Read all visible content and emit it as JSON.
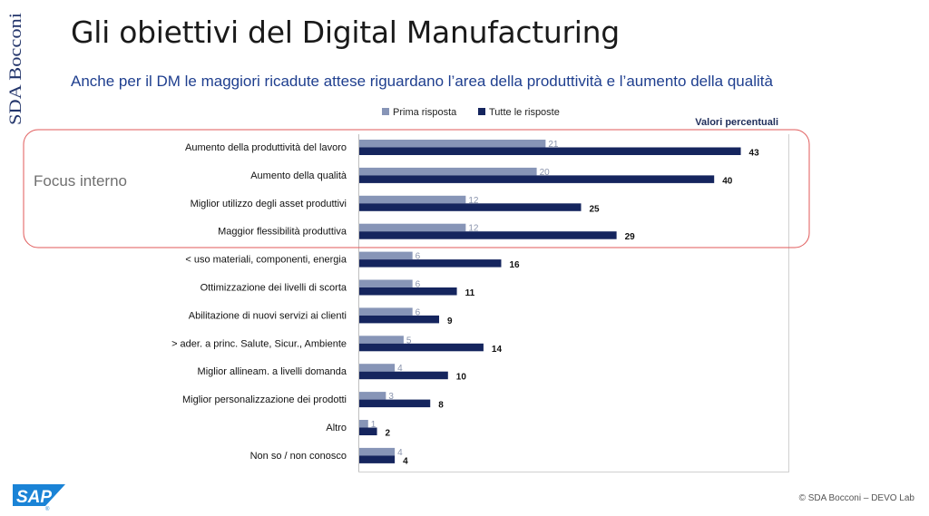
{
  "brand": {
    "side_label": "SDA Bocconi",
    "logo_text": "SAP",
    "logo_mark": "®"
  },
  "title": "Gli obiettivi del Digital Manufacturing",
  "subtitle": "Anche per il DM le maggiori ricadute attese riguardano l’area della produttività e l’aumento della qualità",
  "footer": {
    "copyright": "© SDA Bocconi – DEVO Lab"
  },
  "colors": {
    "primary": "#8795b7",
    "all": "#15255e",
    "focus_box": "#e05a5a"
  },
  "chart_data": {
    "type": "bar",
    "orientation": "horizontal",
    "units_label": "Valori percentuali",
    "categories": [
      "Aumento della produttività del lavoro",
      "Aumento della qualità",
      "Miglior utilizzo degli asset produttivi",
      "Maggior flessibilità produttiva",
      "< uso materiali, componenti, energia",
      "Ottimizzazione dei livelli di scorta",
      "Abilitazione di nuovi servizi ai clienti",
      "> ader. a princ.  Salute, Sicur., Ambiente",
      "Miglior allineam. a livelli domanda",
      "Miglior personalizzazione dei prodotti",
      "Altro",
      "Non so / non conosco"
    ],
    "series": [
      {
        "name": "Prima risposta",
        "values": [
          21,
          20,
          12,
          12,
          6,
          6,
          6,
          5,
          4,
          3,
          1,
          4
        ]
      },
      {
        "name": "Tutte le risposte",
        "values": [
          43,
          40,
          25,
          29,
          16,
          11,
          9,
          14,
          10,
          8,
          2,
          4
        ]
      }
    ],
    "xlim": [
      0,
      50
    ],
    "legend": "top",
    "annotations": [
      {
        "label": "Focus interno",
        "categories_covered": [
          0,
          1,
          2,
          3
        ]
      }
    ]
  }
}
